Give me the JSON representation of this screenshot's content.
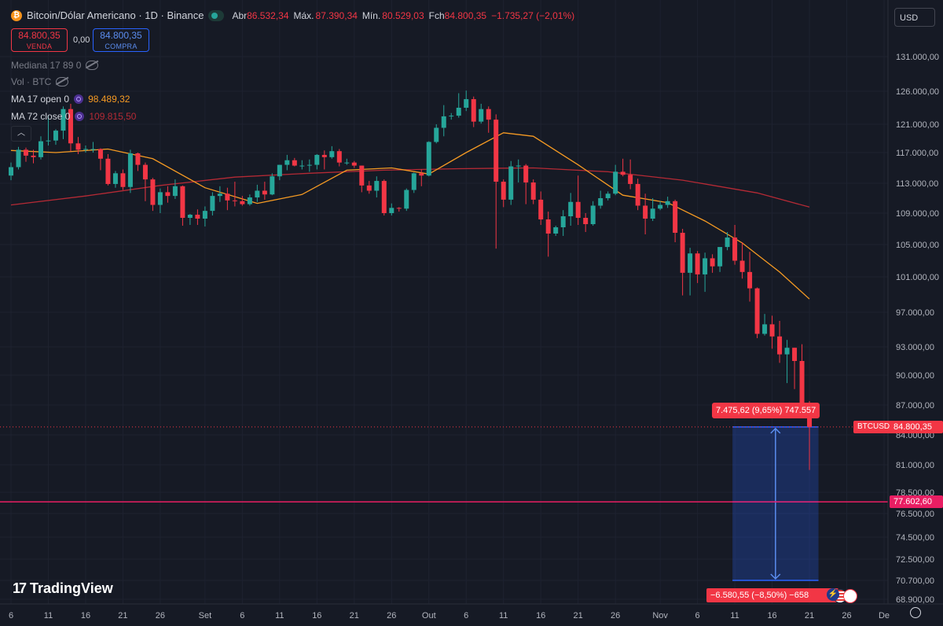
{
  "header": {
    "symbol_icon": "bitcoin-icon",
    "title": "Bitcoin/Dólar Americano · 1D · Binance",
    "open_label": "Abr",
    "open_value": "86.532,34",
    "high_label": "Máx.",
    "high_value": "87.390,34",
    "low_label": "Mín.",
    "low_value": "80.529,03",
    "close_label": "Fch",
    "close_value": "84.800,35",
    "change_value": "−1.735,27 (−2,01%)",
    "currency": "USD"
  },
  "trade": {
    "sell_price": "84.800,35",
    "sell_label": "VENDA",
    "spread": "0,00",
    "buy_price": "84.800,35",
    "buy_label": "COMPRA"
  },
  "indicators": [
    {
      "label": "Mediana 17 89 0",
      "value": ""
    },
    {
      "label": "Vol · BTC",
      "value": ""
    },
    {
      "label": "MA 17 open 0",
      "value": "98.489,32"
    },
    {
      "label": "MA 72 close 0",
      "value": "109.815,50"
    }
  ],
  "colors": {
    "up": "#26a69a",
    "down": "#f23645",
    "ma17": "#f59a23",
    "ma72": "#b52a35",
    "price_line": "#f23645",
    "hline": "#e91e63",
    "measure": "#2962ff"
  },
  "chart_data": {
    "type": "candlestick",
    "y_axis_ticks": [
      131000,
      126000,
      121000,
      117000,
      113000,
      109000,
      105000,
      101000,
      97000,
      93000,
      90000,
      87000,
      84000,
      81000,
      78500,
      76500,
      74500,
      72500,
      70700,
      68900
    ],
    "y_axis_labels": [
      "131.000,00",
      "126.000,00",
      "121.000,00",
      "117.000,00",
      "113.000,00",
      "109.000,00",
      "105.000,00",
      "101.000,00",
      "97.000,00",
      "93.000,00",
      "90.000,00",
      "87.000,00",
      "84.000,00",
      "81.000,00",
      "78.500,00",
      "76.500,00",
      "74.500,00",
      "72.500,00",
      "70.700,00",
      "68.900,00"
    ],
    "x_axis_labels": [
      "6",
      "11",
      "16",
      "21",
      "26",
      "Set",
      "6",
      "11",
      "16",
      "21",
      "26",
      "Out",
      "6",
      "11",
      "16",
      "21",
      "26",
      "Nov",
      "6",
      "11",
      "16",
      "21",
      "26",
      "De"
    ],
    "x_range_days": [
      "2025-08-06",
      "2025-12-01"
    ],
    "candles": [
      {
        "date": "2025-08-06",
        "o": 114000,
        "h": 115700,
        "l": 113400,
        "c": 115100
      },
      {
        "date": "2025-08-07",
        "o": 115100,
        "h": 117800,
        "l": 114800,
        "c": 117400
      },
      {
        "date": "2025-08-08",
        "o": 117400,
        "h": 117700,
        "l": 115800,
        "c": 116600
      },
      {
        "date": "2025-08-09",
        "o": 116600,
        "h": 117400,
        "l": 115600,
        "c": 116400
      },
      {
        "date": "2025-08-10",
        "o": 116400,
        "h": 119300,
        "l": 116100,
        "c": 118600
      },
      {
        "date": "2025-08-11",
        "o": 118600,
        "h": 122300,
        "l": 118000,
        "c": 118700
      },
      {
        "date": "2025-08-12",
        "o": 118700,
        "h": 120300,
        "l": 118100,
        "c": 120100
      },
      {
        "date": "2025-08-13",
        "o": 120100,
        "h": 123700,
        "l": 118900,
        "c": 123300
      },
      {
        "date": "2025-08-14",
        "o": 123300,
        "h": 124100,
        "l": 117200,
        "c": 118300
      },
      {
        "date": "2025-08-15",
        "o": 118300,
        "h": 119200,
        "l": 116800,
        "c": 117400
      },
      {
        "date": "2025-08-16",
        "o": 117400,
        "h": 118000,
        "l": 117000,
        "c": 117500
      },
      {
        "date": "2025-08-17",
        "o": 117500,
        "h": 118500,
        "l": 117000,
        "c": 117500
      },
      {
        "date": "2025-08-18",
        "o": 117500,
        "h": 117600,
        "l": 114700,
        "c": 116200
      },
      {
        "date": "2025-08-19",
        "o": 116200,
        "h": 116800,
        "l": 112700,
        "c": 112900
      },
      {
        "date": "2025-08-20",
        "o": 112900,
        "h": 114600,
        "l": 112400,
        "c": 114300
      },
      {
        "date": "2025-08-21",
        "o": 114300,
        "h": 114800,
        "l": 112100,
        "c": 112500
      },
      {
        "date": "2025-08-22",
        "o": 112500,
        "h": 117400,
        "l": 111700,
        "c": 116900
      },
      {
        "date": "2025-08-23",
        "o": 116900,
        "h": 117000,
        "l": 114600,
        "c": 115400
      },
      {
        "date": "2025-08-24",
        "o": 115400,
        "h": 115700,
        "l": 110600,
        "c": 113500
      },
      {
        "date": "2025-08-25",
        "o": 113500,
        "h": 113700,
        "l": 109300,
        "c": 110100
      },
      {
        "date": "2025-08-26",
        "o": 110100,
        "h": 112300,
        "l": 109000,
        "c": 111800
      },
      {
        "date": "2025-08-27",
        "o": 111800,
        "h": 112600,
        "l": 110400,
        "c": 111300
      },
      {
        "date": "2025-08-28",
        "o": 111300,
        "h": 113500,
        "l": 110900,
        "c": 112600
      },
      {
        "date": "2025-08-29",
        "o": 112600,
        "h": 112700,
        "l": 107400,
        "c": 108400
      },
      {
        "date": "2025-08-30",
        "o": 108400,
        "h": 108900,
        "l": 107500,
        "c": 108800
      },
      {
        "date": "2025-08-31",
        "o": 108800,
        "h": 109500,
        "l": 107500,
        "c": 108300
      },
      {
        "date": "2025-09-01",
        "o": 108300,
        "h": 109900,
        "l": 107300,
        "c": 109300
      },
      {
        "date": "2025-09-02",
        "o": 109300,
        "h": 111800,
        "l": 108700,
        "c": 111300
      },
      {
        "date": "2025-09-03",
        "o": 111300,
        "h": 112600,
        "l": 110500,
        "c": 111600
      },
      {
        "date": "2025-09-04",
        "o": 111600,
        "h": 112400,
        "l": 109400,
        "c": 110700
      },
      {
        "date": "2025-09-05",
        "o": 110700,
        "h": 113200,
        "l": 109900,
        "c": 110600
      },
      {
        "date": "2025-09-06",
        "o": 110600,
        "h": 111300,
        "l": 110000,
        "c": 110200
      },
      {
        "date": "2025-09-07",
        "o": 110200,
        "h": 111500,
        "l": 110000,
        "c": 111100
      },
      {
        "date": "2025-09-08",
        "o": 111100,
        "h": 112800,
        "l": 110500,
        "c": 112000
      },
      {
        "date": "2025-09-09",
        "o": 112000,
        "h": 113200,
        "l": 110800,
        "c": 111500
      },
      {
        "date": "2025-09-10",
        "o": 111500,
        "h": 114300,
        "l": 111400,
        "c": 113900
      },
      {
        "date": "2025-09-11",
        "o": 113900,
        "h": 115400,
        "l": 113400,
        "c": 115400
      },
      {
        "date": "2025-09-12",
        "o": 115400,
        "h": 116700,
        "l": 114700,
        "c": 116000
      },
      {
        "date": "2025-09-13",
        "o": 116000,
        "h": 116300,
        "l": 115200,
        "c": 115300
      },
      {
        "date": "2025-09-14",
        "o": 115300,
        "h": 116000,
        "l": 114800,
        "c": 115300
      },
      {
        "date": "2025-09-15",
        "o": 115300,
        "h": 116100,
        "l": 114500,
        "c": 115400
      },
      {
        "date": "2025-09-16",
        "o": 115400,
        "h": 116800,
        "l": 114800,
        "c": 116700
      },
      {
        "date": "2025-09-17",
        "o": 116700,
        "h": 117300,
        "l": 114800,
        "c": 116400
      },
      {
        "date": "2025-09-18",
        "o": 116400,
        "h": 117900,
        "l": 116200,
        "c": 117200
      },
      {
        "date": "2025-09-19",
        "o": 117200,
        "h": 117500,
        "l": 115200,
        "c": 115700
      },
      {
        "date": "2025-09-20",
        "o": 115700,
        "h": 116200,
        "l": 115400,
        "c": 115700
      },
      {
        "date": "2025-09-21",
        "o": 115700,
        "h": 115900,
        "l": 115000,
        "c": 115300
      },
      {
        "date": "2025-09-22",
        "o": 115300,
        "h": 115300,
        "l": 111800,
        "c": 112700
      },
      {
        "date": "2025-09-23",
        "o": 112700,
        "h": 113300,
        "l": 111600,
        "c": 112000
      },
      {
        "date": "2025-09-24",
        "o": 112000,
        "h": 113900,
        "l": 111100,
        "c": 113300
      },
      {
        "date": "2025-09-25",
        "o": 113300,
        "h": 113500,
        "l": 108700,
        "c": 109000
      },
      {
        "date": "2025-09-26",
        "o": 109000,
        "h": 110300,
        "l": 108700,
        "c": 109700
      },
      {
        "date": "2025-09-27",
        "o": 109700,
        "h": 109800,
        "l": 109200,
        "c": 109600
      },
      {
        "date": "2025-09-28",
        "o": 109600,
        "h": 112300,
        "l": 109300,
        "c": 112100
      },
      {
        "date": "2025-09-29",
        "o": 112100,
        "h": 114400,
        "l": 111700,
        "c": 114300
      },
      {
        "date": "2025-09-30",
        "o": 114300,
        "h": 114800,
        "l": 112600,
        "c": 114000
      },
      {
        "date": "2025-10-01",
        "o": 114000,
        "h": 118600,
        "l": 113900,
        "c": 118500
      },
      {
        "date": "2025-10-02",
        "o": 118500,
        "h": 121000,
        "l": 118300,
        "c": 120500
      },
      {
        "date": "2025-10-03",
        "o": 120500,
        "h": 123900,
        "l": 119300,
        "c": 122200
      },
      {
        "date": "2025-10-04",
        "o": 122200,
        "h": 122700,
        "l": 121700,
        "c": 122300
      },
      {
        "date": "2025-10-05",
        "o": 122300,
        "h": 125700,
        "l": 122000,
        "c": 123500
      },
      {
        "date": "2025-10-06",
        "o": 123500,
        "h": 126100,
        "l": 123000,
        "c": 124800
      },
      {
        "date": "2025-10-07",
        "o": 124800,
        "h": 125200,
        "l": 120600,
        "c": 121400
      },
      {
        "date": "2025-10-08",
        "o": 121400,
        "h": 124100,
        "l": 121100,
        "c": 123300
      },
      {
        "date": "2025-10-09",
        "o": 123300,
        "h": 123700,
        "l": 119800,
        "c": 121700
      },
      {
        "date": "2025-10-10",
        "o": 121700,
        "h": 122500,
        "l": 104500,
        "c": 113200
      },
      {
        "date": "2025-10-11",
        "o": 113200,
        "h": 113500,
        "l": 109800,
        "c": 110800
      },
      {
        "date": "2025-10-12",
        "o": 110800,
        "h": 115900,
        "l": 110100,
        "c": 115200
      },
      {
        "date": "2025-10-13",
        "o": 115200,
        "h": 116100,
        "l": 113100,
        "c": 115300
      },
      {
        "date": "2025-10-14",
        "o": 115300,
        "h": 115500,
        "l": 110200,
        "c": 113100
      },
      {
        "date": "2025-10-15",
        "o": 113100,
        "h": 113500,
        "l": 110200,
        "c": 110800
      },
      {
        "date": "2025-10-16",
        "o": 110800,
        "h": 111900,
        "l": 107500,
        "c": 108200
      },
      {
        "date": "2025-10-17",
        "o": 108200,
        "h": 109200,
        "l": 103500,
        "c": 106400
      },
      {
        "date": "2025-10-18",
        "o": 106400,
        "h": 107400,
        "l": 106100,
        "c": 107200
      },
      {
        "date": "2025-10-19",
        "o": 107200,
        "h": 109400,
        "l": 106100,
        "c": 108600
      },
      {
        "date": "2025-10-20",
        "o": 108600,
        "h": 111700,
        "l": 107400,
        "c": 110500
      },
      {
        "date": "2025-10-21",
        "o": 110500,
        "h": 114000,
        "l": 107500,
        "c": 108400
      },
      {
        "date": "2025-10-22",
        "o": 108400,
        "h": 109000,
        "l": 106600,
        "c": 107600
      },
      {
        "date": "2025-10-23",
        "o": 107600,
        "h": 110600,
        "l": 107400,
        "c": 110000
      },
      {
        "date": "2025-10-24",
        "o": 110000,
        "h": 112000,
        "l": 109600,
        "c": 111000
      },
      {
        "date": "2025-10-25",
        "o": 111000,
        "h": 111900,
        "l": 110700,
        "c": 111600
      },
      {
        "date": "2025-10-26",
        "o": 111600,
        "h": 115400,
        "l": 111400,
        "c": 114500
      },
      {
        "date": "2025-10-27",
        "o": 114500,
        "h": 116200,
        "l": 113900,
        "c": 114100
      },
      {
        "date": "2025-10-28",
        "o": 114100,
        "h": 116100,
        "l": 112200,
        "c": 112900
      },
      {
        "date": "2025-10-29",
        "o": 112900,
        "h": 113600,
        "l": 109400,
        "c": 110000
      },
      {
        "date": "2025-10-30",
        "o": 110000,
        "h": 111600,
        "l": 106300,
        "c": 108300
      },
      {
        "date": "2025-10-31",
        "o": 108300,
        "h": 111000,
        "l": 108000,
        "c": 109600
      },
      {
        "date": "2025-11-01",
        "o": 109600,
        "h": 110600,
        "l": 109400,
        "c": 110100
      },
      {
        "date": "2025-11-02",
        "o": 110100,
        "h": 111200,
        "l": 109700,
        "c": 110600
      },
      {
        "date": "2025-11-03",
        "o": 110600,
        "h": 110800,
        "l": 105300,
        "c": 106500
      },
      {
        "date": "2025-11-04",
        "o": 106500,
        "h": 107000,
        "l": 98900,
        "c": 101500
      },
      {
        "date": "2025-11-05",
        "o": 101500,
        "h": 104600,
        "l": 98900,
        "c": 103900
      },
      {
        "date": "2025-11-06",
        "o": 103900,
        "h": 104200,
        "l": 100300,
        "c": 101300
      },
      {
        "date": "2025-11-07",
        "o": 101300,
        "h": 104000,
        "l": 99300,
        "c": 103300
      },
      {
        "date": "2025-11-08",
        "o": 103300,
        "h": 103800,
        "l": 101500,
        "c": 102300
      },
      {
        "date": "2025-11-09",
        "o": 102300,
        "h": 104600,
        "l": 101600,
        "c": 104700
      },
      {
        "date": "2025-11-10",
        "o": 104700,
        "h": 106600,
        "l": 104300,
        "c": 105900
      },
      {
        "date": "2025-11-11",
        "o": 105900,
        "h": 107500,
        "l": 102500,
        "c": 103000
      },
      {
        "date": "2025-11-12",
        "o": 103000,
        "h": 105300,
        "l": 100800,
        "c": 101600
      },
      {
        "date": "2025-11-13",
        "o": 101600,
        "h": 104100,
        "l": 98200,
        "c": 99700
      },
      {
        "date": "2025-11-14",
        "o": 99700,
        "h": 99800,
        "l": 94000,
        "c": 94500
      },
      {
        "date": "2025-11-15",
        "o": 94500,
        "h": 96800,
        "l": 94300,
        "c": 95600
      },
      {
        "date": "2025-11-16",
        "o": 95600,
        "h": 96600,
        "l": 92800,
        "c": 94200
      },
      {
        "date": "2025-11-17",
        "o": 94200,
        "h": 96000,
        "l": 91300,
        "c": 92200
      },
      {
        "date": "2025-11-18",
        "o": 92200,
        "h": 93800,
        "l": 89200,
        "c": 92900
      },
      {
        "date": "2025-11-19",
        "o": 92900,
        "h": 92900,
        "l": 88600,
        "c": 91500
      },
      {
        "date": "2025-11-20",
        "o": 91500,
        "h": 93300,
        "l": 86400,
        "c": 86600
      },
      {
        "date": "2025-11-21",
        "o": 86532.34,
        "h": 87390.34,
        "l": 80529.03,
        "c": 84800.35
      }
    ],
    "ma17": [
      {
        "date": "2025-08-06",
        "v": 117300
      },
      {
        "date": "2025-08-12",
        "v": 117000
      },
      {
        "date": "2025-08-19",
        "v": 117500
      },
      {
        "date": "2025-08-25",
        "v": 116200
      },
      {
        "date": "2025-09-01",
        "v": 112400
      },
      {
        "date": "2025-09-08",
        "v": 110300
      },
      {
        "date": "2025-09-14",
        "v": 111500
      },
      {
        "date": "2025-09-20",
        "v": 114700
      },
      {
        "date": "2025-09-26",
        "v": 115000
      },
      {
        "date": "2025-10-01",
        "v": 114200
      },
      {
        "date": "2025-10-06",
        "v": 117000
      },
      {
        "date": "2025-10-11",
        "v": 119800
      },
      {
        "date": "2025-10-15",
        "v": 119300
      },
      {
        "date": "2025-10-21",
        "v": 115400
      },
      {
        "date": "2025-10-27",
        "v": 111400
      },
      {
        "date": "2025-11-02",
        "v": 110400
      },
      {
        "date": "2025-11-07",
        "v": 108000
      },
      {
        "date": "2025-11-12",
        "v": 105200
      },
      {
        "date": "2025-11-17",
        "v": 101600
      },
      {
        "date": "2025-11-21",
        "v": 98489.32
      }
    ],
    "ma72": [
      {
        "date": "2025-08-06",
        "v": 110100
      },
      {
        "date": "2025-08-16",
        "v": 111300
      },
      {
        "date": "2025-08-26",
        "v": 112700
      },
      {
        "date": "2025-09-05",
        "v": 113800
      },
      {
        "date": "2025-09-15",
        "v": 114300
      },
      {
        "date": "2025-09-25",
        "v": 114700
      },
      {
        "date": "2025-10-05",
        "v": 114900
      },
      {
        "date": "2025-10-15",
        "v": 115000
      },
      {
        "date": "2025-10-25",
        "v": 114500
      },
      {
        "date": "2025-11-04",
        "v": 113400
      },
      {
        "date": "2025-11-14",
        "v": 111700
      },
      {
        "date": "2025-11-21",
        "v": 109815.5
      }
    ],
    "last_price": {
      "value": 84800.35,
      "label": "84.800,35",
      "symbol": "BTCUSD"
    },
    "horizontal_line": {
      "value": 77602.6,
      "label": "77.602,60"
    },
    "measure": {
      "date_from": "2025-11-11",
      "date_to": "2025-11-22",
      "top": 84800,
      "mid": 77602.6,
      "bottom": 70700,
      "up_label": "7.475,62 (9,65%) 747.557",
      "down_label": "−6.580,55 (−8,50%) −658"
    }
  },
  "watermark": "TradingView"
}
